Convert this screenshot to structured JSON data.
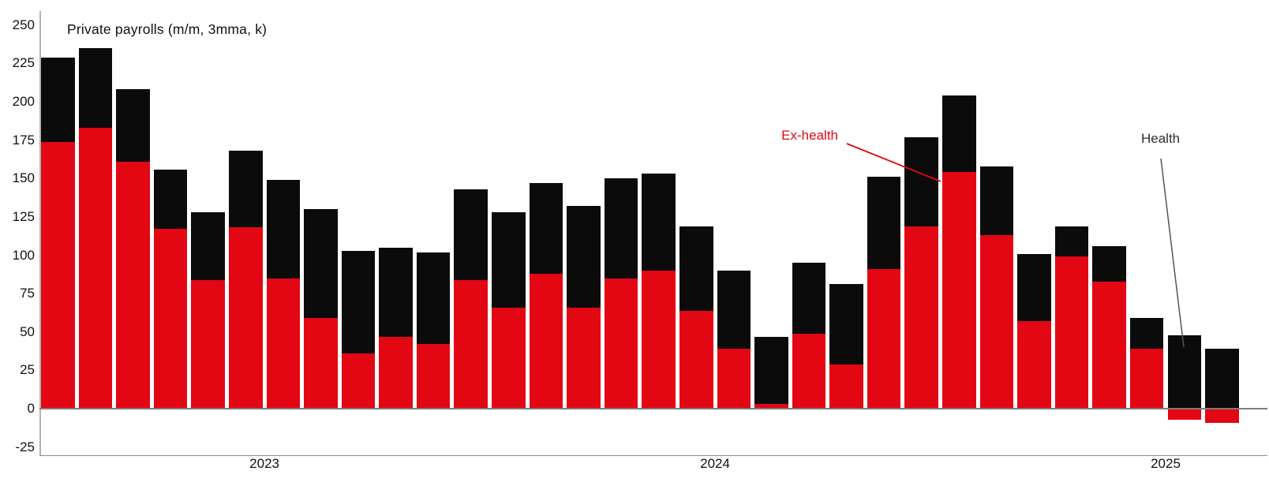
{
  "chart": {
    "title": "Private payrolls (m/m, 3mma, k)",
    "annotations": {
      "ex_health_label": "Ex-health",
      "health_label": "Health"
    }
  },
  "axis": {
    "y_tick_labels": [
      "250",
      "225",
      "200",
      "175",
      "150",
      "125",
      "100",
      "75",
      "50",
      "25",
      "0",
      "-25"
    ],
    "x_tick_labels": [
      "2023",
      "2024",
      "2025"
    ]
  },
  "colors": {
    "ex_health_red": "#e30613",
    "health_black": "#0b0b0b",
    "axis_gray": "#b3b3b3",
    "zero_line_gray": "#7d7d7d",
    "text": "#111111"
  },
  "chart_data": {
    "type": "bar",
    "stacked": true,
    "title": "Private payrolls (m/m, 3mma, k)",
    "x": [
      "2022-07",
      "2022-08",
      "2022-09",
      "2022-10",
      "2022-11",
      "2022-12",
      "2023-01",
      "2023-02",
      "2023-03",
      "2023-04",
      "2023-05",
      "2023-06",
      "2023-07",
      "2023-08",
      "2023-09",
      "2023-10",
      "2023-11",
      "2023-12",
      "2024-01",
      "2024-02",
      "2024-03",
      "2024-04",
      "2024-05",
      "2024-06",
      "2024-07",
      "2024-08",
      "2024-09",
      "2024-10",
      "2024-11",
      "2024-12",
      "2025-01",
      "2025-02"
    ],
    "x_tick_labels": [
      "2023",
      "2024",
      "2025"
    ],
    "x_tick_positions_month_index": [
      6,
      18,
      30
    ],
    "y_ticks": [
      250,
      225,
      200,
      175,
      150,
      125,
      100,
      75,
      50,
      25,
      0,
      -25
    ],
    "ylim": [
      -25,
      250
    ],
    "grid": false,
    "legend_position": "on-chart-annotations",
    "series": [
      {
        "name": "Ex-health",
        "color": "#e30613",
        "values": [
          174,
          183,
          161,
          117,
          84,
          118,
          85,
          59,
          36,
          47,
          42,
          84,
          66,
          88,
          66,
          85,
          90,
          64,
          39,
          3,
          49,
          29,
          91,
          119,
          154,
          113,
          57,
          99,
          83,
          39,
          -7,
          -9
        ]
      },
      {
        "name": "Health",
        "color": "#0b0b0b",
        "values": [
          55,
          52,
          47,
          39,
          44,
          50,
          64,
          71,
          67,
          58,
          60,
          59,
          62,
          59,
          66,
          65,
          63,
          55,
          51,
          44,
          46,
          52,
          60,
          58,
          50,
          45,
          44,
          20,
          23,
          20,
          48,
          39
        ]
      }
    ],
    "totals": [
      229,
      235,
      208,
      156,
      128,
      168,
      149,
      130,
      103,
      105,
      102,
      143,
      128,
      147,
      132,
      150,
      153,
      119,
      90,
      47,
      95,
      81,
      151,
      177,
      204,
      158,
      101,
      119,
      106,
      59,
      41,
      30
    ]
  }
}
